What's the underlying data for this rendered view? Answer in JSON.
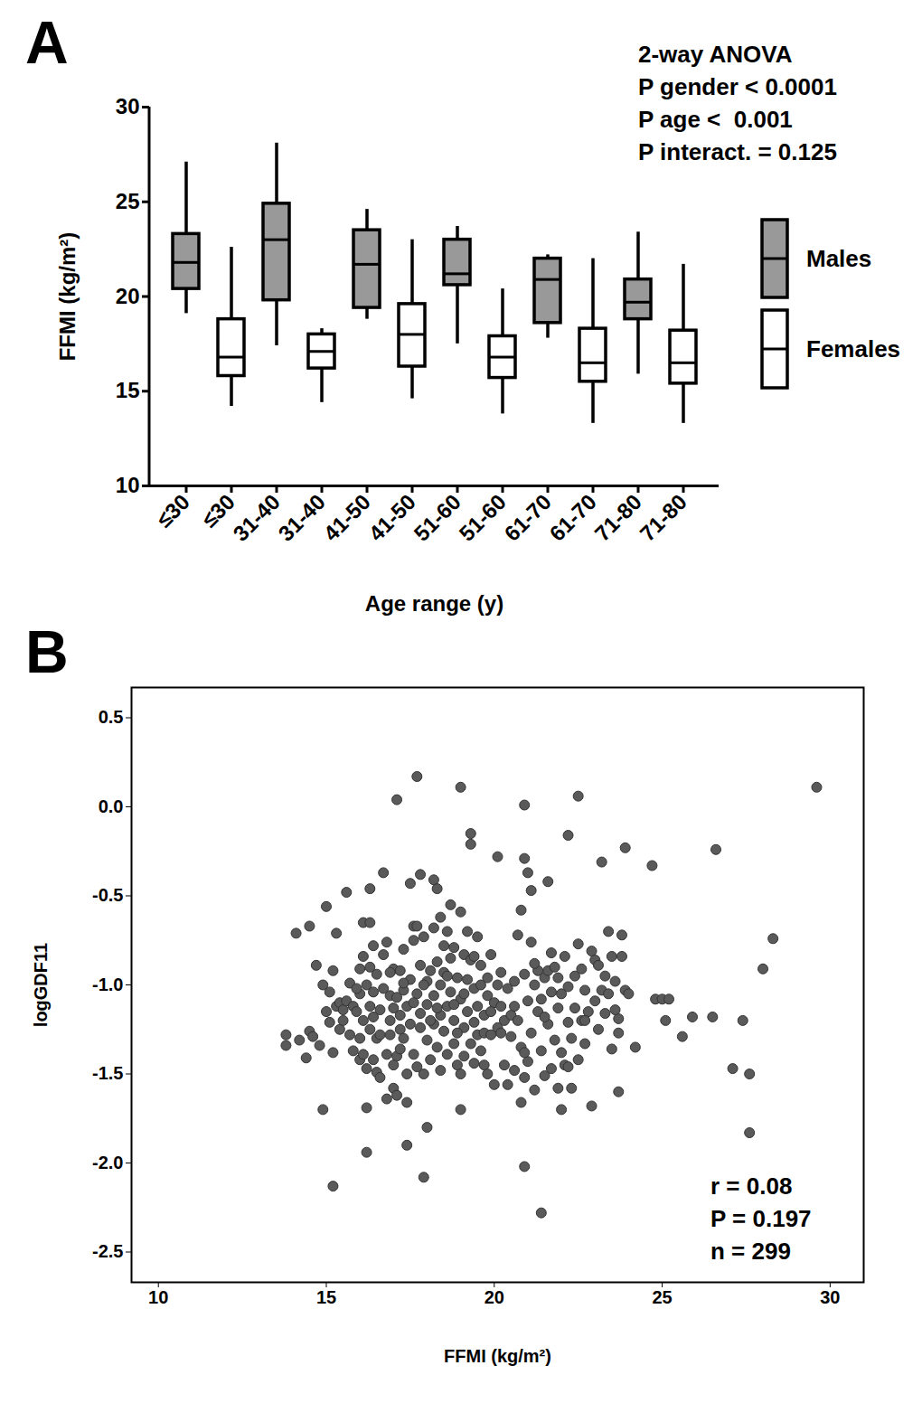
{
  "chart_data": [
    {
      "type": "box",
      "title": "A",
      "xlabel": "Age range (y)",
      "ylabel": "FFMI (kg/m²)",
      "categories": [
        "≤30",
        "≤30",
        "31-40",
        "31-40",
        "41-50",
        "41-50",
        "51-60",
        "51-60",
        "61-70",
        "61-70",
        "71-80",
        "71-80"
      ],
      "series": [
        {
          "name": "Males",
          "color": "#999999"
        },
        {
          "name": "Females",
          "color": "#ffffff"
        }
      ],
      "boxes": [
        {
          "group": "Males",
          "min": 19.1,
          "q1": 20.4,
          "median": 21.8,
          "q3": 23.3,
          "max": 27.1
        },
        {
          "group": "Females",
          "min": 14.2,
          "q1": 15.8,
          "median": 16.8,
          "q3": 18.8,
          "max": 22.6
        },
        {
          "group": "Males",
          "min": 17.4,
          "q1": 19.8,
          "median": 23.0,
          "q3": 24.9,
          "max": 28.1
        },
        {
          "group": "Females",
          "min": 14.4,
          "q1": 16.2,
          "median": 17.1,
          "q3": 18.0,
          "max": 18.3
        },
        {
          "group": "Males",
          "min": 18.8,
          "q1": 19.4,
          "median": 21.7,
          "q3": 23.5,
          "max": 24.6
        },
        {
          "group": "Females",
          "min": 14.6,
          "q1": 16.3,
          "median": 18.0,
          "q3": 19.6,
          "max": 23.0
        },
        {
          "group": "Males",
          "min": 17.5,
          "q1": 20.6,
          "median": 21.2,
          "q3": 23.0,
          "max": 23.7
        },
        {
          "group": "Females",
          "min": 13.8,
          "q1": 15.7,
          "median": 16.8,
          "q3": 17.9,
          "max": 20.4
        },
        {
          "group": "Males",
          "min": 17.8,
          "q1": 18.6,
          "median": 20.9,
          "q3": 22.0,
          "max": 22.2
        },
        {
          "group": "Females",
          "min": 13.3,
          "q1": 15.5,
          "median": 16.5,
          "q3": 18.3,
          "max": 22.0
        },
        {
          "group": "Males",
          "min": 15.9,
          "q1": 18.8,
          "median": 19.7,
          "q3": 20.9,
          "max": 23.4
        },
        {
          "group": "Females",
          "min": 13.3,
          "q1": 15.4,
          "median": 16.5,
          "q3": 18.2,
          "max": 21.7
        }
      ],
      "ylim": [
        10,
        30
      ],
      "yticks": [
        10,
        15,
        20,
        25,
        30
      ],
      "legend": "right",
      "annotations": [
        "2-way ANOVA",
        "P gender < 0.0001",
        "P age <  0.001",
        "P interact. = 0.125"
      ]
    },
    {
      "type": "scatter",
      "title": "B",
      "xlabel": "FFMI (kg/m²)",
      "ylabel": "logGDF11",
      "color": "#5a5a5a",
      "xlim": [
        9.2,
        31
      ],
      "xticks": [
        10,
        15,
        20,
        25,
        30
      ],
      "ylim": [
        -2.67,
        0.67
      ],
      "yticks": [
        -2.5,
        {
          "value": -2,
          "label": "-2.0"
        },
        -1.5,
        {
          "value": -1,
          "label": "-1.0"
        },
        -0.5,
        {
          "value": 0,
          "label": "0.0"
        },
        0.5
      ],
      "annotations": [
        "r = 0.08",
        "P = 0.197",
        "n = 299"
      ],
      "points": [
        [
          13.8,
          -1.28
        ],
        [
          13.8,
          -1.34
        ],
        [
          14.1,
          -0.71
        ],
        [
          14.2,
          -1.31
        ],
        [
          14.4,
          -1.41
        ],
        [
          14.5,
          -0.67
        ],
        [
          14.5,
          -1.26
        ],
        [
          14.6,
          -1.29
        ],
        [
          14.7,
          -0.89
        ],
        [
          14.8,
          -1.34
        ],
        [
          14.9,
          -1.7
        ],
        [
          14.9,
          -1.0
        ],
        [
          15.0,
          -0.56
        ],
        [
          15.0,
          -1.15
        ],
        [
          15.1,
          -1.21
        ],
        [
          15.2,
          -0.92
        ],
        [
          15.2,
          -1.38
        ],
        [
          15.2,
          -2.13
        ],
        [
          15.3,
          -1.12
        ],
        [
          15.3,
          -0.71
        ],
        [
          15.4,
          -1.1
        ],
        [
          15.4,
          -1.25
        ],
        [
          15.5,
          -1.14
        ],
        [
          15.6,
          -0.48
        ],
        [
          15.6,
          -1.09
        ],
        [
          15.7,
          -0.99
        ],
        [
          15.7,
          -1.28
        ],
        [
          15.8,
          -1.37
        ],
        [
          15.8,
          -1.12
        ],
        [
          15.9,
          -1.15
        ],
        [
          16.0,
          -0.91
        ],
        [
          16.0,
          -1.05
        ],
        [
          16.0,
          -1.42
        ],
        [
          16.1,
          -0.65
        ],
        [
          16.1,
          -0.84
        ],
        [
          16.1,
          -1.2
        ],
        [
          16.1,
          -1.39
        ],
        [
          16.2,
          -1.0
        ],
        [
          16.2,
          -1.47
        ],
        [
          16.2,
          -1.69
        ],
        [
          16.2,
          -1.94
        ],
        [
          16.3,
          -0.46
        ],
        [
          16.3,
          -0.65
        ],
        [
          16.3,
          -1.25
        ],
        [
          16.3,
          -1.12
        ],
        [
          16.4,
          -1.04
        ],
        [
          16.4,
          -1.42
        ],
        [
          16.4,
          -0.78
        ],
        [
          16.5,
          -1.3
        ],
        [
          16.5,
          -1.49
        ],
        [
          16.5,
          -0.94
        ],
        [
          16.6,
          -1.14
        ],
        [
          16.6,
          -1.28
        ],
        [
          16.7,
          -0.37
        ],
        [
          16.7,
          -1.02
        ],
        [
          16.7,
          -0.83
        ],
        [
          16.8,
          -0.76
        ],
        [
          16.8,
          -1.39
        ],
        [
          16.8,
          -1.64
        ],
        [
          16.9,
          -1.2
        ],
        [
          16.9,
          -1.06
        ],
        [
          16.9,
          -1.28
        ],
        [
          17.0,
          -1.58
        ],
        [
          17.0,
          -0.91
        ],
        [
          17.0,
          -1.13
        ],
        [
          17.1,
          0.04
        ],
        [
          17.1,
          -1.62
        ],
        [
          17.1,
          -1.4
        ],
        [
          17.1,
          -1.07
        ],
        [
          17.2,
          -0.92
        ],
        [
          17.2,
          -1.25
        ],
        [
          17.2,
          -1.17
        ],
        [
          17.3,
          -1.03
        ],
        [
          17.3,
          -1.3
        ],
        [
          17.3,
          -0.8
        ],
        [
          17.4,
          -1.9
        ],
        [
          17.4,
          -1.5
        ],
        [
          17.4,
          -1.66
        ],
        [
          17.4,
          -1.12
        ],
        [
          17.5,
          -0.43
        ],
        [
          17.5,
          -0.97
        ],
        [
          17.5,
          -1.22
        ],
        [
          17.6,
          -0.67
        ],
        [
          17.6,
          -0.75
        ],
        [
          17.6,
          -1.39
        ],
        [
          17.7,
          0.17
        ],
        [
          17.7,
          -0.67
        ],
        [
          17.7,
          -1.05
        ],
        [
          17.7,
          -1.46
        ],
        [
          17.8,
          -0.38
        ],
        [
          17.8,
          -0.89
        ],
        [
          17.8,
          -1.16
        ],
        [
          17.8,
          -1.24
        ],
        [
          17.9,
          -2.08
        ],
        [
          17.9,
          -1.5
        ],
        [
          17.9,
          -0.73
        ],
        [
          18.0,
          -1.8
        ],
        [
          18.0,
          -0.98
        ],
        [
          18.0,
          -1.31
        ],
        [
          18.0,
          -1.11
        ],
        [
          18.1,
          -0.92
        ],
        [
          18.1,
          -1.42
        ],
        [
          18.2,
          -0.41
        ],
        [
          18.2,
          -0.68
        ],
        [
          18.2,
          -1.06
        ],
        [
          18.2,
          -1.22
        ],
        [
          18.3,
          -0.46
        ],
        [
          18.3,
          -0.87
        ],
        [
          18.3,
          -1.35
        ],
        [
          18.4,
          -1.0
        ],
        [
          18.4,
          -1.17
        ],
        [
          18.4,
          -1.48
        ],
        [
          18.5,
          -0.78
        ],
        [
          18.5,
          -0.93
        ],
        [
          18.5,
          -1.26
        ],
        [
          18.6,
          -0.7
        ],
        [
          18.6,
          -1.12
        ],
        [
          18.6,
          -1.39
        ],
        [
          18.7,
          -0.55
        ],
        [
          18.7,
          -0.85
        ],
        [
          18.7,
          -1.04
        ],
        [
          18.8,
          -1.2
        ],
        [
          18.8,
          -1.33
        ],
        [
          18.8,
          -0.79
        ],
        [
          18.9,
          -0.96
        ],
        [
          18.9,
          -1.45
        ],
        [
          19.0,
          0.11
        ],
        [
          19.0,
          -0.59
        ],
        [
          19.0,
          -1.7
        ],
        [
          19.0,
          -1.08
        ],
        [
          19.0,
          -1.5
        ],
        [
          19.1,
          -0.83
        ],
        [
          19.1,
          -1.24
        ],
        [
          19.1,
          -1.4
        ],
        [
          19.2,
          -0.7
        ],
        [
          19.2,
          -0.97
        ],
        [
          19.2,
          -1.15
        ],
        [
          19.3,
          -0.15
        ],
        [
          19.3,
          -0.21
        ],
        [
          19.3,
          -0.86
        ],
        [
          19.3,
          -1.33
        ],
        [
          19.4,
          -1.02
        ],
        [
          19.4,
          -1.21
        ],
        [
          19.4,
          -1.44
        ],
        [
          19.5,
          -0.73
        ],
        [
          19.5,
          -1.12
        ],
        [
          19.5,
          -1.28
        ],
        [
          19.6,
          -0.89
        ],
        [
          19.6,
          -1.0
        ],
        [
          19.6,
          -1.37
        ],
        [
          19.7,
          -1.17
        ],
        [
          19.7,
          -1.27
        ],
        [
          19.8,
          -0.96
        ],
        [
          19.8,
          -1.06
        ],
        [
          19.9,
          -1.28
        ],
        [
          19.9,
          -0.83
        ],
        [
          20.0,
          -1.56
        ],
        [
          20.0,
          -1.1
        ],
        [
          20.1,
          -0.28
        ],
        [
          20.1,
          -1.24
        ],
        [
          20.1,
          -1.0
        ],
        [
          20.2,
          -1.27
        ],
        [
          20.2,
          -1.12
        ],
        [
          20.3,
          -1.2
        ],
        [
          20.4,
          -1.56
        ],
        [
          20.4,
          -1.02
        ],
        [
          20.5,
          -1.17
        ],
        [
          20.5,
          -1.29
        ],
        [
          20.6,
          -1.48
        ],
        [
          20.6,
          -0.98
        ],
        [
          20.7,
          -0.72
        ],
        [
          20.7,
          -1.2
        ],
        [
          20.8,
          -0.58
        ],
        [
          20.8,
          -1.66
        ],
        [
          20.8,
          -1.35
        ],
        [
          20.9,
          0.01
        ],
        [
          20.9,
          -0.29
        ],
        [
          20.9,
          -2.02
        ],
        [
          20.9,
          -0.94
        ],
        [
          20.9,
          -1.52
        ],
        [
          21.0,
          -0.37
        ],
        [
          21.0,
          -1.09
        ],
        [
          21.0,
          -1.43
        ],
        [
          21.1,
          -0.47
        ],
        [
          21.1,
          -0.76
        ],
        [
          21.1,
          -1.27
        ],
        [
          21.2,
          -1.0
        ],
        [
          21.2,
          -1.59
        ],
        [
          21.3,
          -0.92
        ],
        [
          21.3,
          -1.15
        ],
        [
          21.4,
          -2.28
        ],
        [
          21.4,
          -1.08
        ],
        [
          21.4,
          -1.37
        ],
        [
          21.5,
          -0.96
        ],
        [
          21.5,
          -1.51
        ],
        [
          21.6,
          -0.42
        ],
        [
          21.6,
          -1.22
        ],
        [
          21.6,
          -0.92
        ],
        [
          21.7,
          -1.47
        ],
        [
          21.7,
          -1.04
        ],
        [
          21.8,
          -0.9
        ],
        [
          21.8,
          -1.31
        ],
        [
          21.9,
          -1.13
        ],
        [
          21.9,
          -0.96
        ],
        [
          22.0,
          -1.7
        ],
        [
          22.0,
          -1.38
        ],
        [
          22.0,
          -1.05
        ],
        [
          22.1,
          -0.84
        ],
        [
          22.1,
          -1.45
        ],
        [
          22.2,
          -0.16
        ],
        [
          22.2,
          -1.21
        ],
        [
          22.2,
          -1.01
        ],
        [
          22.3,
          -1.58
        ],
        [
          22.3,
          -1.3
        ],
        [
          22.4,
          -0.95
        ],
        [
          22.4,
          -1.13
        ],
        [
          22.5,
          0.06
        ],
        [
          22.5,
          -1.42
        ],
        [
          22.5,
          -0.77
        ],
        [
          22.6,
          -1.2
        ],
        [
          22.6,
          -0.91
        ],
        [
          22.7,
          -1.03
        ],
        [
          22.7,
          -1.33
        ],
        [
          22.8,
          -1.15
        ],
        [
          22.9,
          -1.68
        ],
        [
          22.9,
          -0.81
        ],
        [
          23.0,
          -0.86
        ],
        [
          23.0,
          -1.09
        ],
        [
          23.1,
          -0.89
        ],
        [
          23.1,
          -1.25
        ],
        [
          23.2,
          -0.31
        ],
        [
          23.2,
          -1.03
        ],
        [
          23.3,
          -1.16
        ],
        [
          23.4,
          -0.7
        ],
        [
          23.4,
          -1.05
        ],
        [
          23.5,
          -0.84
        ],
        [
          23.5,
          -1.36
        ],
        [
          23.6,
          -0.98
        ],
        [
          23.7,
          -1.6
        ],
        [
          23.7,
          -1.27
        ],
        [
          23.7,
          -1.19
        ],
        [
          23.8,
          -0.72
        ],
        [
          23.8,
          -0.84
        ],
        [
          23.9,
          -0.23
        ],
        [
          23.9,
          -1.03
        ],
        [
          24.0,
          -1.05
        ],
        [
          24.2,
          -1.35
        ],
        [
          24.7,
          -0.33
        ],
        [
          24.8,
          -1.08
        ],
        [
          25.0,
          -1.08
        ],
        [
          25.1,
          -1.2
        ],
        [
          25.2,
          -1.08
        ],
        [
          25.6,
          -1.29
        ],
        [
          25.9,
          -1.18
        ],
        [
          26.5,
          -1.18
        ],
        [
          26.6,
          -0.24
        ],
        [
          27.1,
          -1.47
        ],
        [
          27.4,
          -1.2
        ],
        [
          27.6,
          -1.5
        ],
        [
          27.6,
          -1.83
        ],
        [
          28.0,
          -0.91
        ],
        [
          28.3,
          -0.74
        ],
        [
          29.6,
          0.11
        ],
        [
          15.5,
          -1.2
        ],
        [
          15.9,
          -1.02
        ],
        [
          16.0,
          -1.3
        ],
        [
          16.4,
          -1.18
        ],
        [
          16.6,
          -1.52
        ],
        [
          16.9,
          -0.93
        ],
        [
          17.2,
          -1.36
        ],
        [
          17.3,
          -0.99
        ],
        [
          17.6,
          -1.1
        ],
        [
          17.9,
          -1.0
        ],
        [
          18.1,
          -1.2
        ],
        [
          18.3,
          -1.13
        ],
        [
          18.6,
          -0.95
        ],
        [
          18.9,
          -1.27
        ],
        [
          19.1,
          -1.05
        ],
        [
          19.4,
          -0.84
        ],
        [
          19.7,
          -1.45
        ],
        [
          19.9,
          -1.15
        ],
        [
          20.3,
          -1.45
        ],
        [
          20.6,
          -1.12
        ],
        [
          20.9,
          -1.38
        ],
        [
          21.2,
          -0.88
        ],
        [
          21.5,
          -1.18
        ],
        [
          21.9,
          -1.58
        ],
        [
          22.2,
          -1.46
        ],
        [
          22.7,
          -1.2
        ],
        [
          23.3,
          -0.95
        ],
        [
          23.6,
          -1.14
        ],
        [
          18.4,
          -0.62
        ],
        [
          17.0,
          -1.45
        ],
        [
          16.3,
          -0.9
        ],
        [
          19.8,
          -1.5
        ],
        [
          20.2,
          -0.93
        ],
        [
          21.7,
          -0.82
        ],
        [
          15.1,
          -1.04
        ],
        [
          18.8,
          -1.11
        ]
      ]
    }
  ]
}
